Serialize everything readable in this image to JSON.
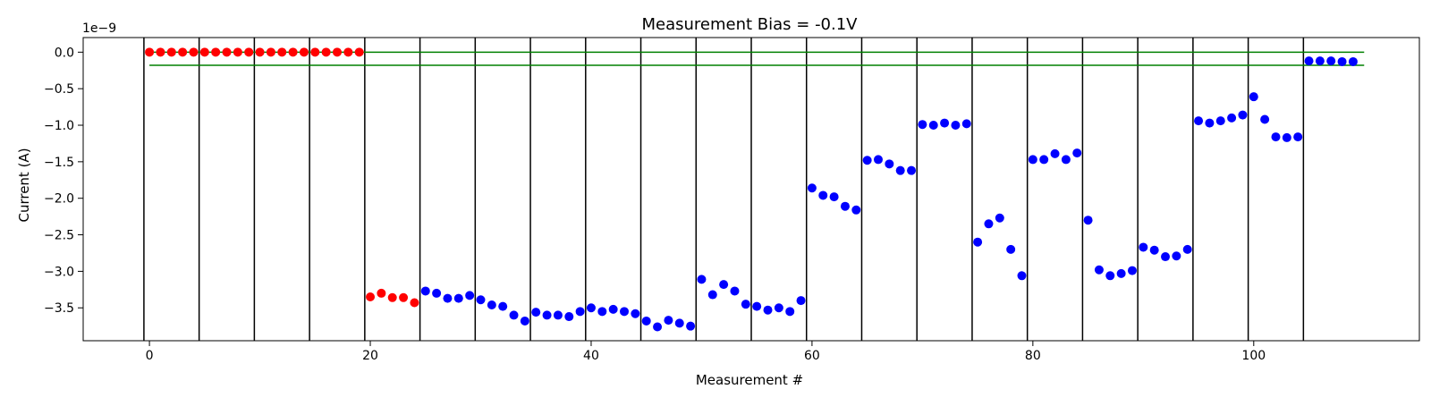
{
  "chart_data": {
    "type": "scatter",
    "title": "Measurement Bias = -0.1V",
    "xlabel": "Measurement #",
    "ylabel": "Current (A)",
    "y_offset_text": "1e−9",
    "xlim": [
      -6,
      115
    ],
    "ylim": [
      -3.95,
      0.2
    ],
    "x_ticks": [
      0,
      20,
      40,
      60,
      80,
      100
    ],
    "x_tick_labels": [
      "0",
      "20",
      "40",
      "60",
      "80",
      "100"
    ],
    "y_ticks": [
      0.0,
      -0.5,
      -1.0,
      -1.5,
      -2.0,
      -2.5,
      -3.0,
      -3.5
    ],
    "y_tick_labels": [
      "0.0",
      "−0.5",
      "−1.0",
      "−1.5",
      "−2.0",
      "−2.5",
      "−3.0",
      "−3.5"
    ],
    "grid": false,
    "legend": "none",
    "vertical_lines": {
      "color": "#000000",
      "x": [
        -0.5,
        4.5,
        9.5,
        14.5,
        19.5,
        24.5,
        29.5,
        34.5,
        39.5,
        44.5,
        49.5,
        54.5,
        59.5,
        64.5,
        69.5,
        74.5,
        79.5,
        84.5,
        89.5,
        94.5,
        99.5,
        104.5
      ]
    },
    "horizontal_lines": {
      "color": "#008000",
      "x_range": [
        0,
        110
      ],
      "y": [
        0.0,
        -0.18
      ]
    },
    "series": [
      {
        "color": "#ff0000",
        "x": [
          0,
          1,
          2,
          3,
          4,
          5,
          6,
          7,
          8,
          9,
          10,
          11,
          12,
          13,
          14,
          15,
          16,
          17,
          18,
          19,
          20,
          21,
          22,
          23,
          24
        ],
        "y": [
          0,
          0,
          0,
          0,
          0,
          0,
          0,
          0,
          0,
          0,
          0,
          0,
          0,
          0,
          0,
          0,
          0,
          0,
          0,
          0,
          -3.35,
          -3.3,
          -3.36,
          -3.36,
          -3.43
        ]
      },
      {
        "color": "#0000ff",
        "x": [
          25,
          26,
          27,
          28,
          29,
          30,
          31,
          32,
          33,
          34,
          35,
          36,
          37,
          38,
          39,
          40,
          41,
          42,
          43,
          44,
          45,
          46,
          47,
          48,
          49,
          50,
          51,
          52,
          53,
          54,
          55,
          56,
          57,
          58,
          59,
          60,
          61,
          62,
          63,
          64,
          65,
          66,
          67,
          68,
          69,
          70,
          71,
          72,
          73,
          74,
          75,
          76,
          77,
          78,
          79,
          80,
          81,
          82,
          83,
          84,
          85,
          86,
          87,
          88,
          89,
          90,
          91,
          92,
          93,
          94,
          95,
          96,
          97,
          98,
          99,
          100,
          101,
          102,
          103,
          104,
          105,
          106,
          107,
          108,
          109
        ],
        "y": [
          -3.27,
          -3.3,
          -3.37,
          -3.37,
          -3.33,
          -3.39,
          -3.46,
          -3.48,
          -3.6,
          -3.68,
          -3.56,
          -3.6,
          -3.6,
          -3.62,
          -3.55,
          -3.5,
          -3.55,
          -3.52,
          -3.55,
          -3.58,
          -3.68,
          -3.76,
          -3.67,
          -3.71,
          -3.75,
          -3.11,
          -3.32,
          -3.18,
          -3.27,
          -3.45,
          -3.48,
          -3.53,
          -3.5,
          -3.55,
          -3.4,
          -1.86,
          -1.96,
          -1.98,
          -2.11,
          -2.16,
          -1.48,
          -1.47,
          -1.53,
          -1.62,
          -1.62,
          -0.99,
          -1.0,
          -0.97,
          -1.0,
          -0.98,
          -2.6,
          -2.35,
          -2.27,
          -2.7,
          -3.06,
          -1.47,
          -1.47,
          -1.39,
          -1.47,
          -1.38,
          -2.3,
          -2.98,
          -3.06,
          -3.03,
          -2.99,
          -2.67,
          -2.71,
          -2.8,
          -2.79,
          -2.7,
          -0.94,
          -0.97,
          -0.94,
          -0.9,
          -0.86,
          -0.61,
          -0.92,
          -1.16,
          -1.17,
          -1.16,
          -0.12,
          -0.12,
          -0.12,
          -0.13,
          -0.13
        ]
      }
    ]
  }
}
